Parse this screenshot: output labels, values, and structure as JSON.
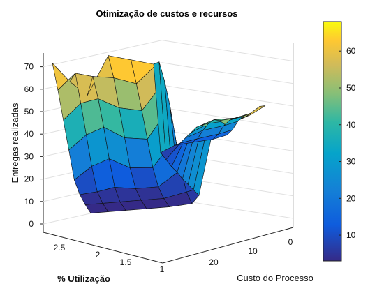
{
  "chart_data": {
    "type": "surface",
    "title": "Otimização de custos e recursos",
    "xlabel": "Custo do Processo",
    "ylabel": "% Utilização",
    "zlabel": "Entregas realizadas",
    "x_ticks": [
      "0",
      "10",
      "20"
    ],
    "y_ticks": [
      "2.5",
      "2",
      "1.5",
      "1"
    ],
    "z_ticks": [
      "0",
      "10",
      "20",
      "30",
      "40",
      "50",
      "60",
      "70"
    ],
    "xlim": [
      0,
      25
    ],
    "ylim": [
      0.9,
      2.8
    ],
    "zlim": [
      0,
      70
    ],
    "grid": true,
    "colormap": "parula",
    "colorbar": {
      "ticks": [
        "10",
        "20",
        "30",
        "40",
        "50",
        "60"
      ],
      "range": [
        3,
        68
      ]
    },
    "surface_rows": [
      {
        "u": 0.0,
        "z": [
          68,
          55,
          40,
          25,
          10,
          5,
          3,
          2
        ]
      },
      {
        "u": 0.1,
        "z": [
          55,
          65,
          50,
          34,
          18,
          6,
          3,
          2
        ]
      },
      {
        "u": 0.2,
        "z": [
          45,
          62,
          52,
          38,
          22,
          8,
          3,
          2
        ]
      },
      {
        "u": 0.32,
        "z": [
          70,
          60,
          45,
          30,
          15,
          6,
          3,
          2
        ]
      },
      {
        "u": 0.45,
        "z": [
          66,
          55,
          42,
          28,
          14,
          6,
          3,
          2
        ]
      },
      {
        "u": 0.58,
        "z": [
          62,
          68,
          60,
          48,
          32,
          16,
          6,
          3
        ]
      },
      {
        "u": 0.62,
        "z": [
          4,
          4,
          4,
          5,
          5,
          6,
          7,
          8
        ]
      },
      {
        "u": 0.7,
        "z": [
          8,
          14,
          22,
          30,
          38,
          44,
          47,
          50
        ]
      },
      {
        "u": 0.8,
        "z": [
          9,
          16,
          26,
          35,
          42,
          46,
          48,
          53
        ]
      },
      {
        "u": 0.92,
        "z": [
          10,
          18,
          28,
          36,
          42,
          47,
          52,
          58
        ]
      },
      {
        "u": 1.0,
        "z": [
          12,
          20,
          30,
          38,
          44,
          50,
          58,
          63
        ]
      }
    ]
  }
}
